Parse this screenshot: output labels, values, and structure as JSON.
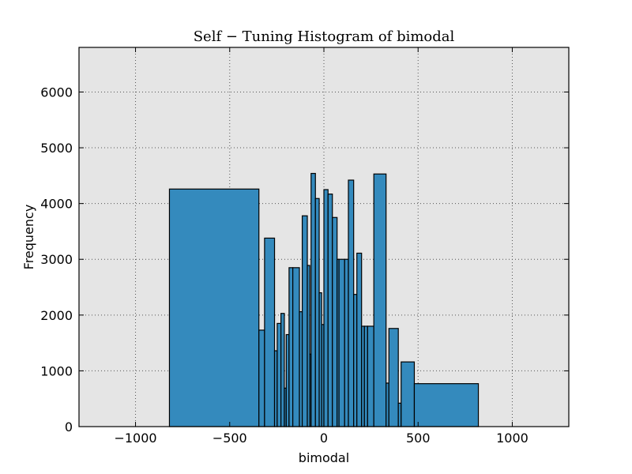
{
  "chart_data": {
    "type": "bar",
    "title": "Self − Tuning Histogram of bimodal",
    "xlabel": "bimodal",
    "ylabel": "Frequency",
    "xlim": [
      -1300,
      1300
    ],
    "ylim": [
      0,
      6800
    ],
    "xticks": [
      -1000,
      -500,
      0,
      500,
      1000
    ],
    "xtick_labels": [
      "−1000",
      "−500",
      "0",
      "500",
      "1000"
    ],
    "yticks": [
      0,
      1000,
      2000,
      3000,
      4000,
      5000,
      6000
    ],
    "ytick_labels": [
      "0",
      "1000",
      "2000",
      "3000",
      "4000",
      "5000",
      "6000"
    ],
    "grid": true,
    "bar_color": "#348abd",
    "background_color": "#e5e5e5",
    "bins": [
      {
        "x0": -820,
        "x1": -345,
        "count": 4260
      },
      {
        "x0": -345,
        "x1": -315,
        "count": 1730
      },
      {
        "x0": -315,
        "x1": -262,
        "count": 3380
      },
      {
        "x0": -262,
        "x1": -248,
        "count": 1360
      },
      {
        "x0": -248,
        "x1": -228,
        "count": 1850
      },
      {
        "x0": -228,
        "x1": -210,
        "count": 2030
      },
      {
        "x0": -210,
        "x1": -200,
        "count": 690
      },
      {
        "x0": -200,
        "x1": -185,
        "count": 1650
      },
      {
        "x0": -185,
        "x1": -165,
        "count": 2850
      },
      {
        "x0": -165,
        "x1": -130,
        "count": 2850
      },
      {
        "x0": -130,
        "x1": -115,
        "count": 2060
      },
      {
        "x0": -115,
        "x1": -88,
        "count": 3780
      },
      {
        "x0": -88,
        "x1": -75,
        "count": 2890
      },
      {
        "x0": -75,
        "x1": -68,
        "count": 1300
      },
      {
        "x0": -68,
        "x1": -45,
        "count": 4540
      },
      {
        "x0": -45,
        "x1": -25,
        "count": 4090
      },
      {
        "x0": -25,
        "x1": -12,
        "count": 2400
      },
      {
        "x0": -12,
        "x1": 0,
        "count": 1830
      },
      {
        "x0": 0,
        "x1": 22,
        "count": 4250
      },
      {
        "x0": 22,
        "x1": 45,
        "count": 4170
      },
      {
        "x0": 45,
        "x1": 70,
        "count": 3750
      },
      {
        "x0": 70,
        "x1": 80,
        "count": 3000
      },
      {
        "x0": 80,
        "x1": 110,
        "count": 3000
      },
      {
        "x0": 110,
        "x1": 130,
        "count": 3000
      },
      {
        "x0": 130,
        "x1": 158,
        "count": 4420
      },
      {
        "x0": 158,
        "x1": 175,
        "count": 2370
      },
      {
        "x0": 175,
        "x1": 200,
        "count": 3110
      },
      {
        "x0": 200,
        "x1": 215,
        "count": 1800
      },
      {
        "x0": 215,
        "x1": 232,
        "count": 1800
      },
      {
        "x0": 232,
        "x1": 265,
        "count": 1800
      },
      {
        "x0": 265,
        "x1": 330,
        "count": 4530
      },
      {
        "x0": 330,
        "x1": 345,
        "count": 780
      },
      {
        "x0": 345,
        "x1": 395,
        "count": 1760
      },
      {
        "x0": 395,
        "x1": 410,
        "count": 420
      },
      {
        "x0": 410,
        "x1": 480,
        "count": 1160
      },
      {
        "x0": 480,
        "x1": 820,
        "count": 770
      }
    ]
  }
}
